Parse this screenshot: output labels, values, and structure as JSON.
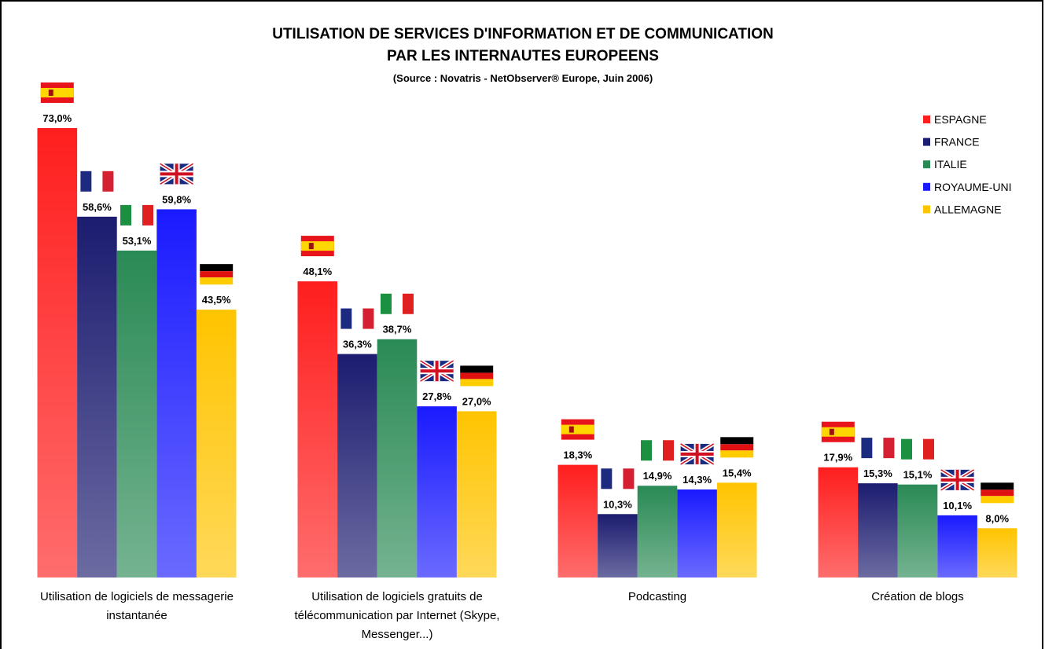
{
  "chart_data": {
    "type": "bar",
    "title": [
      "UTILISATION DE SERVICES D'INFORMATION ET DE COMMUNICATION",
      "PAR LES INTERNAUTES EUROPEENS"
    ],
    "subtitle": "(Source : Novatris - NetObserver® Europe, Juin 2006)",
    "categories": [
      "Utilisation de logiciels de messagerie instantanée",
      "Utilisation de logiciels gratuits de télécommunication par Internet (Skype, Messenger...)",
      "Podcasting",
      "Création de blogs"
    ],
    "series": [
      {
        "name": "ESPAGNE",
        "color": "#ff1e1e",
        "values": [
          73.0,
          48.1,
          18.3,
          17.9
        ],
        "value_labels": [
          "73,0%",
          "48,1%",
          "18,3%",
          "17,9%"
        ]
      },
      {
        "name": "FRANCE",
        "color": "#1c1c70",
        "values": [
          58.6,
          36.3,
          10.3,
          15.3
        ],
        "value_labels": [
          "58,6%",
          "36,3%",
          "10,3%",
          "15,3%"
        ]
      },
      {
        "name": "ITALIE",
        "color": "#2a8a55",
        "values": [
          53.1,
          38.7,
          14.9,
          15.1
        ],
        "value_labels": [
          "53,1%",
          "38,7%",
          "14,9%",
          "15,1%"
        ]
      },
      {
        "name": "ROYAUME-UNI",
        "color": "#1a1aff",
        "values": [
          59.8,
          27.8,
          14.3,
          10.1
        ],
        "value_labels": [
          "59,8%",
          "27,8%",
          "14,3%",
          "10,1%"
        ]
      },
      {
        "name": "ALLEMAGNE",
        "color": "#ffc400",
        "values": [
          43.5,
          27.0,
          15.4,
          8.0
        ],
        "value_labels": [
          "43,5%",
          "27,0%",
          "15,4%",
          "8,0%"
        ]
      }
    ],
    "legend": "top-right"
  }
}
